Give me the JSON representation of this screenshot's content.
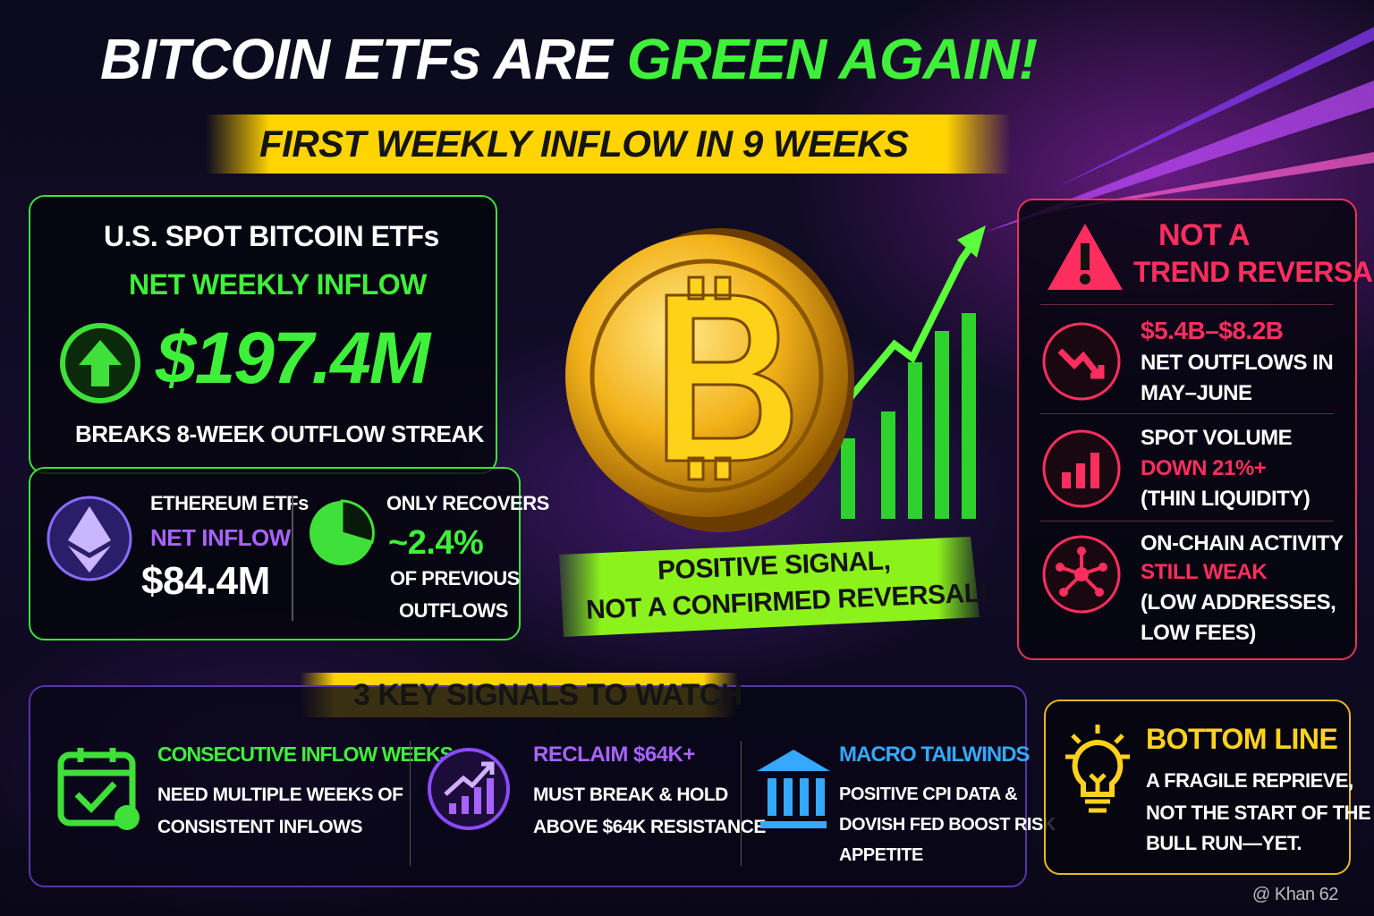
{
  "header": {
    "title_white": "BITCOIN ETFs ARE",
    "title_green": "GREEN AGAIN!",
    "subtitle": "FIRST WEEKLY INFLOW IN 9 WEEKS"
  },
  "btc_panel": {
    "heading": "U.S. SPOT BITCOIN ETFs",
    "label": "NET WEEKLY INFLOW",
    "amount": "$197.4M",
    "note": "BREAKS 8-WEEK OUTFLOW STREAK"
  },
  "eth_panel": {
    "heading": "ETHEREUM ETFs",
    "label": "NET INFLOW",
    "amount": "$84.4M"
  },
  "recovery_panel": {
    "lines": [
      "ONLY RECOVERS",
      "~2.4%",
      "OF PREVIOUS",
      "OUTFLOWS"
    ]
  },
  "signal_banner": {
    "lines": [
      "POSITIVE SIGNAL,",
      "NOT A CONFIRMED REVERSAL!"
    ]
  },
  "warning_panel": {
    "title": [
      "NOT A",
      "TREND REVERSAL"
    ],
    "items": [
      {
        "lines": [
          "$5.4B–$8.2B",
          "NET OUTFLOWS IN",
          "MAY–JUNE"
        ]
      },
      {
        "lines": [
          "SPOT VOLUME",
          "DOWN 21%+",
          "(THIN LIQUIDITY)"
        ]
      },
      {
        "lines": [
          "ON-CHAIN ACTIVITY",
          "STILL WEAK",
          "(LOW ADDRESSES,",
          "LOW FEES)"
        ]
      }
    ]
  },
  "signals_panel": {
    "title": "3 KEY SIGNALS TO WATCH",
    "items": [
      {
        "title": "CONSECUTIVE INFLOW WEEKS",
        "lines": [
          "NEED MULTIPLE WEEKS OF",
          "CONSISTENT INFLOWS"
        ]
      },
      {
        "title": "RECLAIM $64K+",
        "lines": [
          "MUST BREAK & HOLD",
          "ABOVE $64K RESISTANCE"
        ]
      },
      {
        "title": "MACRO TAILWINDS",
        "lines": [
          "POSITIVE CPI DATA &",
          "DOVISH FED BOOST RISK",
          "APPETITE"
        ]
      }
    ]
  },
  "bottom_line": {
    "title": "BOTTOM LINE",
    "lines": [
      "A FRAGILE REPRIEVE,",
      "NOT THE START OF THE",
      "BULL RUN—YET."
    ]
  },
  "watermark": "@ Khan 62"
}
